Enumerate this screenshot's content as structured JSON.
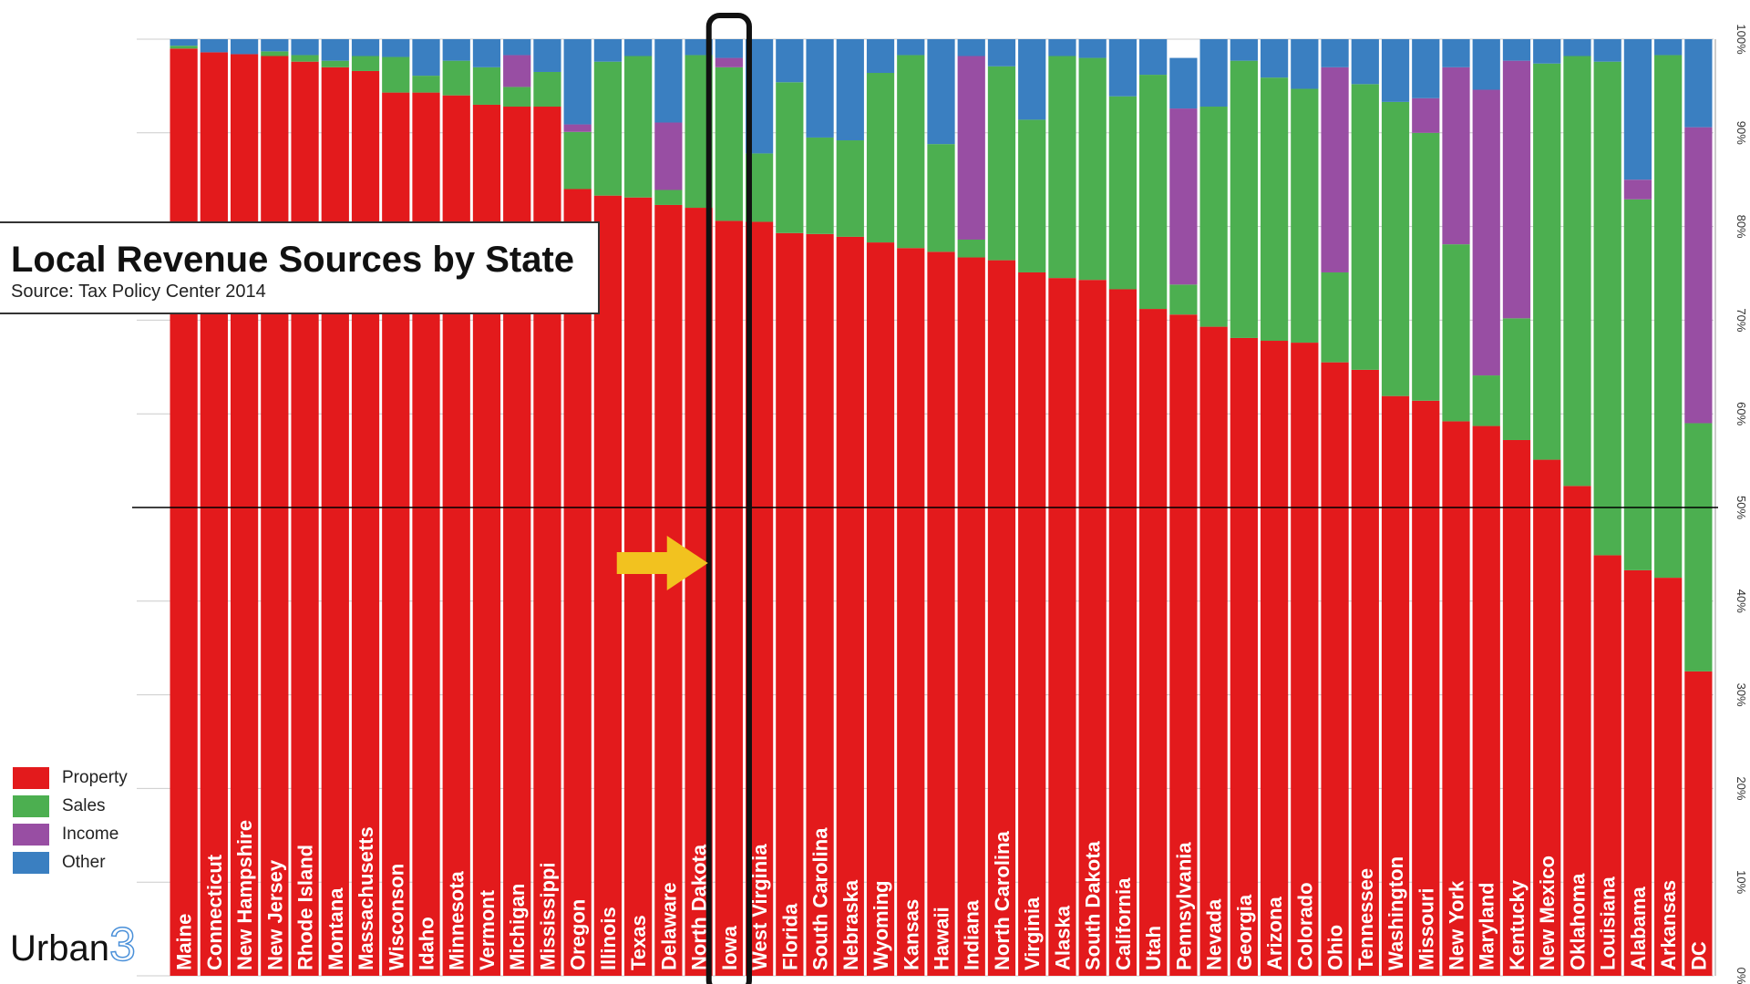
{
  "chart_data": {
    "type": "bar",
    "stacked": true,
    "title": "Local Revenue Sources by State",
    "subtitle": "Source: Tax Policy Center 2014",
    "ylim": [
      0,
      100
    ],
    "y_ticks": [
      "0%",
      "10%",
      "20%",
      "30%",
      "40%",
      "50%",
      "60%",
      "70%",
      "80%",
      "90%",
      "100%"
    ],
    "reference_line": 50,
    "highlighted_category": "Iowa",
    "categories": [
      "Maine",
      "Connecticut",
      "New Hampshire",
      "New Jersey",
      "Rhode Island",
      "Montana",
      "Massachusetts",
      "Wisconson",
      "Idaho",
      "Minnesota",
      "Vermont",
      "Michigan",
      "Mississippi",
      "Oregon",
      "Illinois",
      "Texas",
      "Delaware",
      "North Dakota",
      "Iowa",
      "West Virginia",
      "Florida",
      "South Carolina",
      "Nebraska",
      "Wyoming",
      "Kansas",
      "Hawaii",
      "Indiana",
      "North Carolina",
      "Virginia",
      "Alaska",
      "South Dakota",
      "California",
      "Utah",
      "Pennsylvania",
      "Nevada",
      "Georgia",
      "Arizona",
      "Colorado",
      "Ohio",
      "Tennessee",
      "Washington",
      "Missouri",
      "New York",
      "Maryland",
      "Kentucky",
      "New Mexico",
      "Oklahoma",
      "Louisiana",
      "Alabama",
      "Arkansas",
      "DC"
    ],
    "series": [
      {
        "name": "Property",
        "color": "#e31a1c",
        "values": [
          99,
          98.6,
          98.4,
          98.2,
          97.6,
          97,
          96.6,
          94.3,
          94.3,
          94,
          93,
          92.8,
          92.8,
          84,
          83.3,
          83.1,
          82.3,
          82,
          80.6,
          80.5,
          79.3,
          79.2,
          78.9,
          78.3,
          77.7,
          77.3,
          76.7,
          76.4,
          75.1,
          74.5,
          74.3,
          73.3,
          71.2,
          70.6,
          69.3,
          68.1,
          67.8,
          67.6,
          65.5,
          64.7,
          61.9,
          61.4,
          59.2,
          58.7,
          57.2,
          55.1,
          52.3,
          44.9,
          43.3,
          42.5,
          32.5
        ]
      },
      {
        "name": "Sales",
        "color": "#4caf50",
        "values": [
          0.3,
          0,
          0,
          0.5,
          0.7,
          0.7,
          1.6,
          3.8,
          1.8,
          3.7,
          4,
          2.1,
          3.7,
          6.1,
          14.3,
          15.1,
          1.6,
          16.3,
          16.4,
          7.3,
          16.1,
          10.3,
          10.3,
          18.1,
          20.6,
          11.5,
          1.9,
          20.7,
          16.3,
          23.7,
          23.7,
          20.6,
          25,
          3.2,
          23.5,
          29.6,
          28.1,
          27.1,
          9.6,
          30.5,
          31.4,
          28.6,
          18.9,
          5.4,
          13,
          42.3,
          45.9,
          52.7,
          39.6,
          55.8,
          26.5
        ]
      },
      {
        "name": "Income",
        "color": "#984ea3",
        "values": [
          0,
          0,
          0,
          0,
          0,
          0,
          0,
          0,
          0,
          0,
          0,
          3.4,
          0,
          0.8,
          0,
          0,
          7.2,
          0,
          1,
          0,
          0,
          0,
          0,
          0,
          0,
          0,
          19.6,
          0,
          0,
          0,
          0,
          0,
          0,
          18.8,
          0,
          0,
          0,
          0,
          21.9,
          0,
          0,
          3.7,
          18.9,
          30.5,
          27.5,
          0,
          0,
          0,
          2.1,
          0,
          31.6
        ]
      },
      {
        "name": "Other",
        "color": "#3a7fc1",
        "values": [
          0.7,
          1.4,
          1.6,
          1.3,
          1.7,
          2.3,
          1.8,
          1.9,
          3.9,
          2.3,
          3,
          1.7,
          3.5,
          9.1,
          2.4,
          1.8,
          8.9,
          1.7,
          2,
          12.2,
          4.6,
          10.5,
          10.8,
          3.6,
          1.7,
          11.2,
          1.8,
          2.9,
          8.6,
          1.8,
          2,
          6.1,
          3.8,
          5.4,
          7.2,
          2.3,
          4.1,
          5.3,
          3,
          4.8,
          6.7,
          6.3,
          3,
          5.4,
          2.3,
          2.6,
          1.8,
          2.4,
          15,
          1.7,
          9.4
        ]
      }
    ]
  },
  "title_box": {
    "title": "Local Revenue Sources by State",
    "subtitle": "Source: Tax Policy Center 2014"
  },
  "legend": {
    "items": [
      {
        "label": "Property",
        "color": "#e31a1c"
      },
      {
        "label": "Sales",
        "color": "#4caf50"
      },
      {
        "label": "Income",
        "color": "#984ea3"
      },
      {
        "label": "Other",
        "color": "#3a7fc1"
      }
    ]
  },
  "logo": {
    "text": "Urban",
    "mark": "3"
  },
  "annotation": {
    "arrow_color": "#f2c21f",
    "highlight_color": "#111111"
  }
}
